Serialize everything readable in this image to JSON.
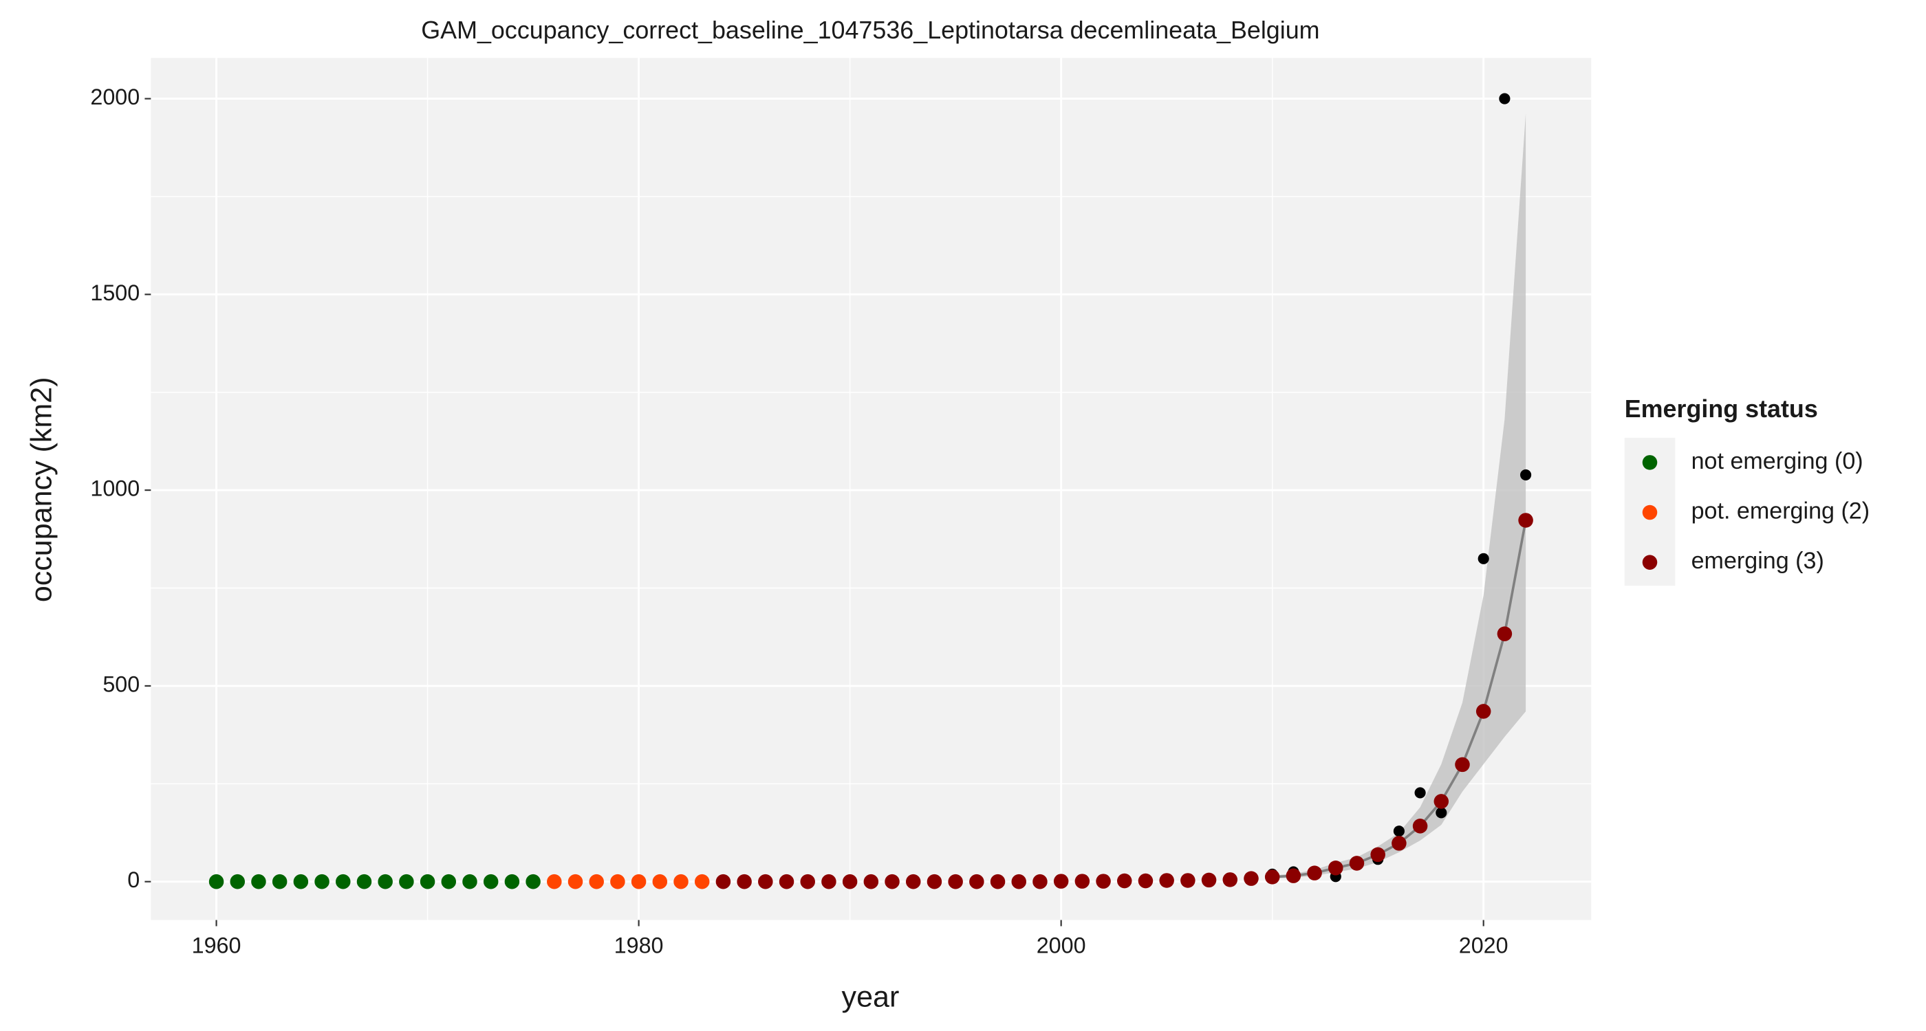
{
  "chart_data": {
    "type": "scatter",
    "title": "GAM_occupancy_correct_baseline_1047536_Leptinotarsa decemlineata_Belgium",
    "x_label": "year",
    "y_label": "occupancy (km2)",
    "legend_title": "Emerging status",
    "legend_position": "right",
    "xlim": [
      1956.9,
      2025.1
    ],
    "xticks": [
      1960,
      1980,
      2000,
      2020
    ],
    "ylim": [
      -98,
      2104
    ],
    "yticks": [
      0,
      500,
      1000,
      1500,
      2000
    ],
    "grid": true,
    "series": [
      {
        "name": "not emerging (0)",
        "color": "#006400",
        "x": [
          1960,
          1961,
          1962,
          1963,
          1964,
          1965,
          1966,
          1967,
          1968,
          1969,
          1970,
          1971,
          1972,
          1973,
          1974,
          1975
        ],
        "values": [
          0,
          0,
          0,
          0,
          0,
          0,
          0,
          0,
          0,
          0,
          0,
          0,
          0,
          0,
          0,
          0
        ]
      },
      {
        "name": "pot. emerging (2)",
        "color": "#FF4500",
        "x": [
          1976,
          1977,
          1978,
          1979,
          1980,
          1981,
          1982,
          1983
        ],
        "values": [
          0,
          0,
          0,
          0,
          0,
          0,
          0,
          0
        ]
      },
      {
        "name": "emerging (3)",
        "color": "#8B0000",
        "x": [
          1984,
          1985,
          1986,
          1987,
          1988,
          1989,
          1990,
          1991,
          1992,
          1993,
          1994,
          1995,
          1996,
          1997,
          1998,
          1999,
          2000,
          2001,
          2002,
          2003,
          2004,
          2005,
          2006,
          2007,
          2008,
          2009,
          2010,
          2011,
          2012,
          2013,
          2014,
          2015,
          2016,
          2017,
          2018,
          2019,
          2020,
          2021,
          2022
        ],
        "values": [
          0,
          0,
          0,
          0,
          0,
          0,
          0,
          0,
          0,
          0,
          0,
          0,
          0,
          0,
          0,
          0,
          1,
          1,
          1,
          2,
          2,
          3,
          3,
          4,
          5,
          8,
          12,
          15,
          22,
          35,
          47,
          69,
          98,
          142,
          205,
          299,
          435,
          633,
          923
        ]
      }
    ],
    "observed": {
      "color": "#000000",
      "x": [
        2010,
        2011,
        2012,
        2013,
        2014,
        2015,
        2016,
        2017,
        2018,
        2020,
        2021,
        2022
      ],
      "values": [
        19,
        25,
        20,
        13,
        45,
        57,
        129,
        227,
        176,
        825,
        2000,
        1039
      ]
    },
    "trend": {
      "color": "#808080",
      "band_color": "#bdbdbd",
      "x": [
        2010,
        2011,
        2012,
        2013,
        2014,
        2015,
        2016,
        2017,
        2018,
        2019,
        2020,
        2021,
        2022
      ],
      "values": [
        12,
        15,
        22,
        35,
        47,
        69,
        98,
        142,
        205,
        299,
        435,
        633,
        923
      ],
      "lower": [
        8,
        10,
        15,
        24,
        33,
        50,
        75,
        105,
        145,
        230,
        300,
        370,
        435
      ],
      "upper": [
        16,
        20,
        30,
        48,
        62,
        90,
        125,
        190,
        300,
        457,
        731,
        1181,
        1962
      ]
    }
  }
}
